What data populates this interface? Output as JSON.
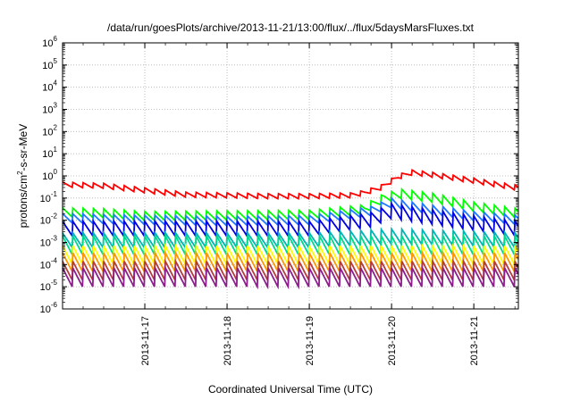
{
  "chart_data": {
    "type": "line",
    "title": "/data/run/goesPlots/archive/2013-11-21/13:00/flux/../flux/5daysMarsFluxes.txt",
    "xlabel": "Coordinated Universal Time (UTC)",
    "ylabel": {
      "base": "protons/cm",
      "exp": "2",
      "rest": "-s-sr-MeV"
    },
    "yscale": "log",
    "ylim": [
      -6,
      6
    ],
    "yticks": [
      {
        "base": "10",
        "exp": "6",
        "value": 6
      },
      {
        "base": "10",
        "exp": "5",
        "value": 5
      },
      {
        "base": "10",
        "exp": "4",
        "value": 4
      },
      {
        "base": "10",
        "exp": "3",
        "value": 3
      },
      {
        "base": "10",
        "exp": "2",
        "value": 2
      },
      {
        "base": "10",
        "exp": "1",
        "value": 1
      },
      {
        "base": "10",
        "exp": "0",
        "value": 0
      },
      {
        "base": "10",
        "exp": "-1",
        "value": -1
      },
      {
        "base": "10",
        "exp": "-2",
        "value": -2
      },
      {
        "base": "10",
        "exp": "-3",
        "value": -3
      },
      {
        "base": "10",
        "exp": "-4",
        "value": -4
      },
      {
        "base": "10",
        "exp": "-5",
        "value": -5
      },
      {
        "base": "10",
        "exp": "-6",
        "value": -6
      }
    ],
    "xlim": [
      "2013-11-16 00:00",
      "2013-11-21 13:00"
    ],
    "xticks": [
      {
        "label": "2013-11-17",
        "value": "2013-11-17 00:00"
      },
      {
        "label": "2013-11-18",
        "value": "2013-11-18 00:00"
      },
      {
        "label": "2013-11-19",
        "value": "2013-11-19 00:00"
      },
      {
        "label": "2013-11-20",
        "value": "2013-11-20 00:00"
      },
      {
        "label": "2013-11-21",
        "value": "2013-11-21 00:00"
      }
    ],
    "grid": true,
    "sawtooth_period_hours": 3,
    "series": [
      {
        "color": "#ff0000",
        "points": [
          [
            "2013-11-16 00:00",
            0.4
          ],
          [
            "2013-11-16 12:00",
            0.35
          ],
          [
            "2013-11-17 00:00",
            0.22
          ],
          [
            "2013-11-17 12:00",
            0.14
          ],
          [
            "2013-11-18 00:00",
            0.13
          ],
          [
            "2013-11-18 12:00",
            0.12
          ],
          [
            "2013-11-19 00:00",
            0.12
          ],
          [
            "2013-11-19 12:00",
            0.13
          ],
          [
            "2013-11-19 16:00",
            0.17
          ],
          [
            "2013-11-19 21:00",
            0.3
          ],
          [
            "2013-11-20 02:00",
            0.9
          ],
          [
            "2013-11-20 06:00",
            1.4
          ],
          [
            "2013-11-20 12:00",
            1.1
          ],
          [
            "2013-11-21 00:00",
            0.6
          ],
          [
            "2013-11-21 13:00",
            0.28
          ]
        ]
      },
      {
        "color": "#00ff00",
        "points": [
          [
            "2013-11-16 00:00",
            0.022
          ],
          [
            "2013-11-16 12:00",
            0.02
          ],
          [
            "2013-11-17 00:00",
            0.015
          ],
          [
            "2013-11-18 00:00",
            0.016
          ],
          [
            "2013-11-19 00:00",
            0.017
          ],
          [
            "2013-11-19 16:00",
            0.03
          ],
          [
            "2013-11-19 22:00",
            0.1
          ],
          [
            "2013-11-20 03:00",
            0.15
          ],
          [
            "2013-11-20 12:00",
            0.1
          ],
          [
            "2013-11-21 00:00",
            0.04
          ],
          [
            "2013-11-21 13:00",
            0.02
          ]
        ]
      },
      {
        "color": "#1e78ff",
        "points": [
          [
            "2013-11-16 00:00",
            0.012
          ],
          [
            "2013-11-17 00:00",
            0.01
          ],
          [
            "2013-11-18 00:00",
            0.009
          ],
          [
            "2013-11-19 00:00",
            0.01
          ],
          [
            "2013-11-19 18:00",
            0.025
          ],
          [
            "2013-11-20 00:00",
            0.06
          ],
          [
            "2013-11-20 06:00",
            0.04
          ],
          [
            "2013-11-21 00:00",
            0.015
          ],
          [
            "2013-11-21 13:00",
            0.01
          ]
        ]
      },
      {
        "color": "#0000e0",
        "points": [
          [
            "2013-11-16 00:00",
            0.004
          ],
          [
            "2013-11-17 00:00",
            0.004
          ],
          [
            "2013-11-18 00:00",
            0.004
          ],
          [
            "2013-11-19 00:00",
            0.004
          ],
          [
            "2013-11-19 18:00",
            0.01
          ],
          [
            "2013-11-20 00:00",
            0.025
          ],
          [
            "2013-11-20 06:00",
            0.018
          ],
          [
            "2013-11-21 00:00",
            0.007
          ],
          [
            "2013-11-21 13:00",
            0.004
          ]
        ]
      },
      {
        "color": "#00b4b4",
        "points": [
          [
            "2013-11-16 00:00",
            0.0012
          ],
          [
            "2013-11-17 00:00",
            0.0012
          ],
          [
            "2013-11-18 00:00",
            0.0012
          ],
          [
            "2013-11-19 00:00",
            0.0012
          ],
          [
            "2013-11-20 00:00",
            0.0018
          ],
          [
            "2013-11-21 00:00",
            0.0014
          ],
          [
            "2013-11-21 13:00",
            0.0012
          ]
        ]
      },
      {
        "color": "#00d88c",
        "points": [
          [
            "2013-11-16 00:00",
            0.0007
          ],
          [
            "2013-11-21 13:00",
            0.0007
          ]
        ]
      },
      {
        "color": "#ffff00",
        "points": [
          [
            "2013-11-16 00:00",
            0.00025
          ],
          [
            "2013-11-21 13:00",
            0.00025
          ]
        ]
      },
      {
        "color": "#ff9600",
        "points": [
          [
            "2013-11-16 00:00",
            0.00012
          ],
          [
            "2013-11-21 13:00",
            0.00012
          ]
        ]
      },
      {
        "color": "#b43c3c",
        "points": [
          [
            "2013-11-16 00:00",
            5e-05
          ],
          [
            "2013-11-21 13:00",
            5e-05
          ]
        ]
      },
      {
        "color": "#8c1e8c",
        "points": [
          [
            "2013-11-16 00:00",
            2.5e-05
          ],
          [
            "2013-11-21 13:00",
            2.5e-05
          ]
        ]
      }
    ]
  }
}
